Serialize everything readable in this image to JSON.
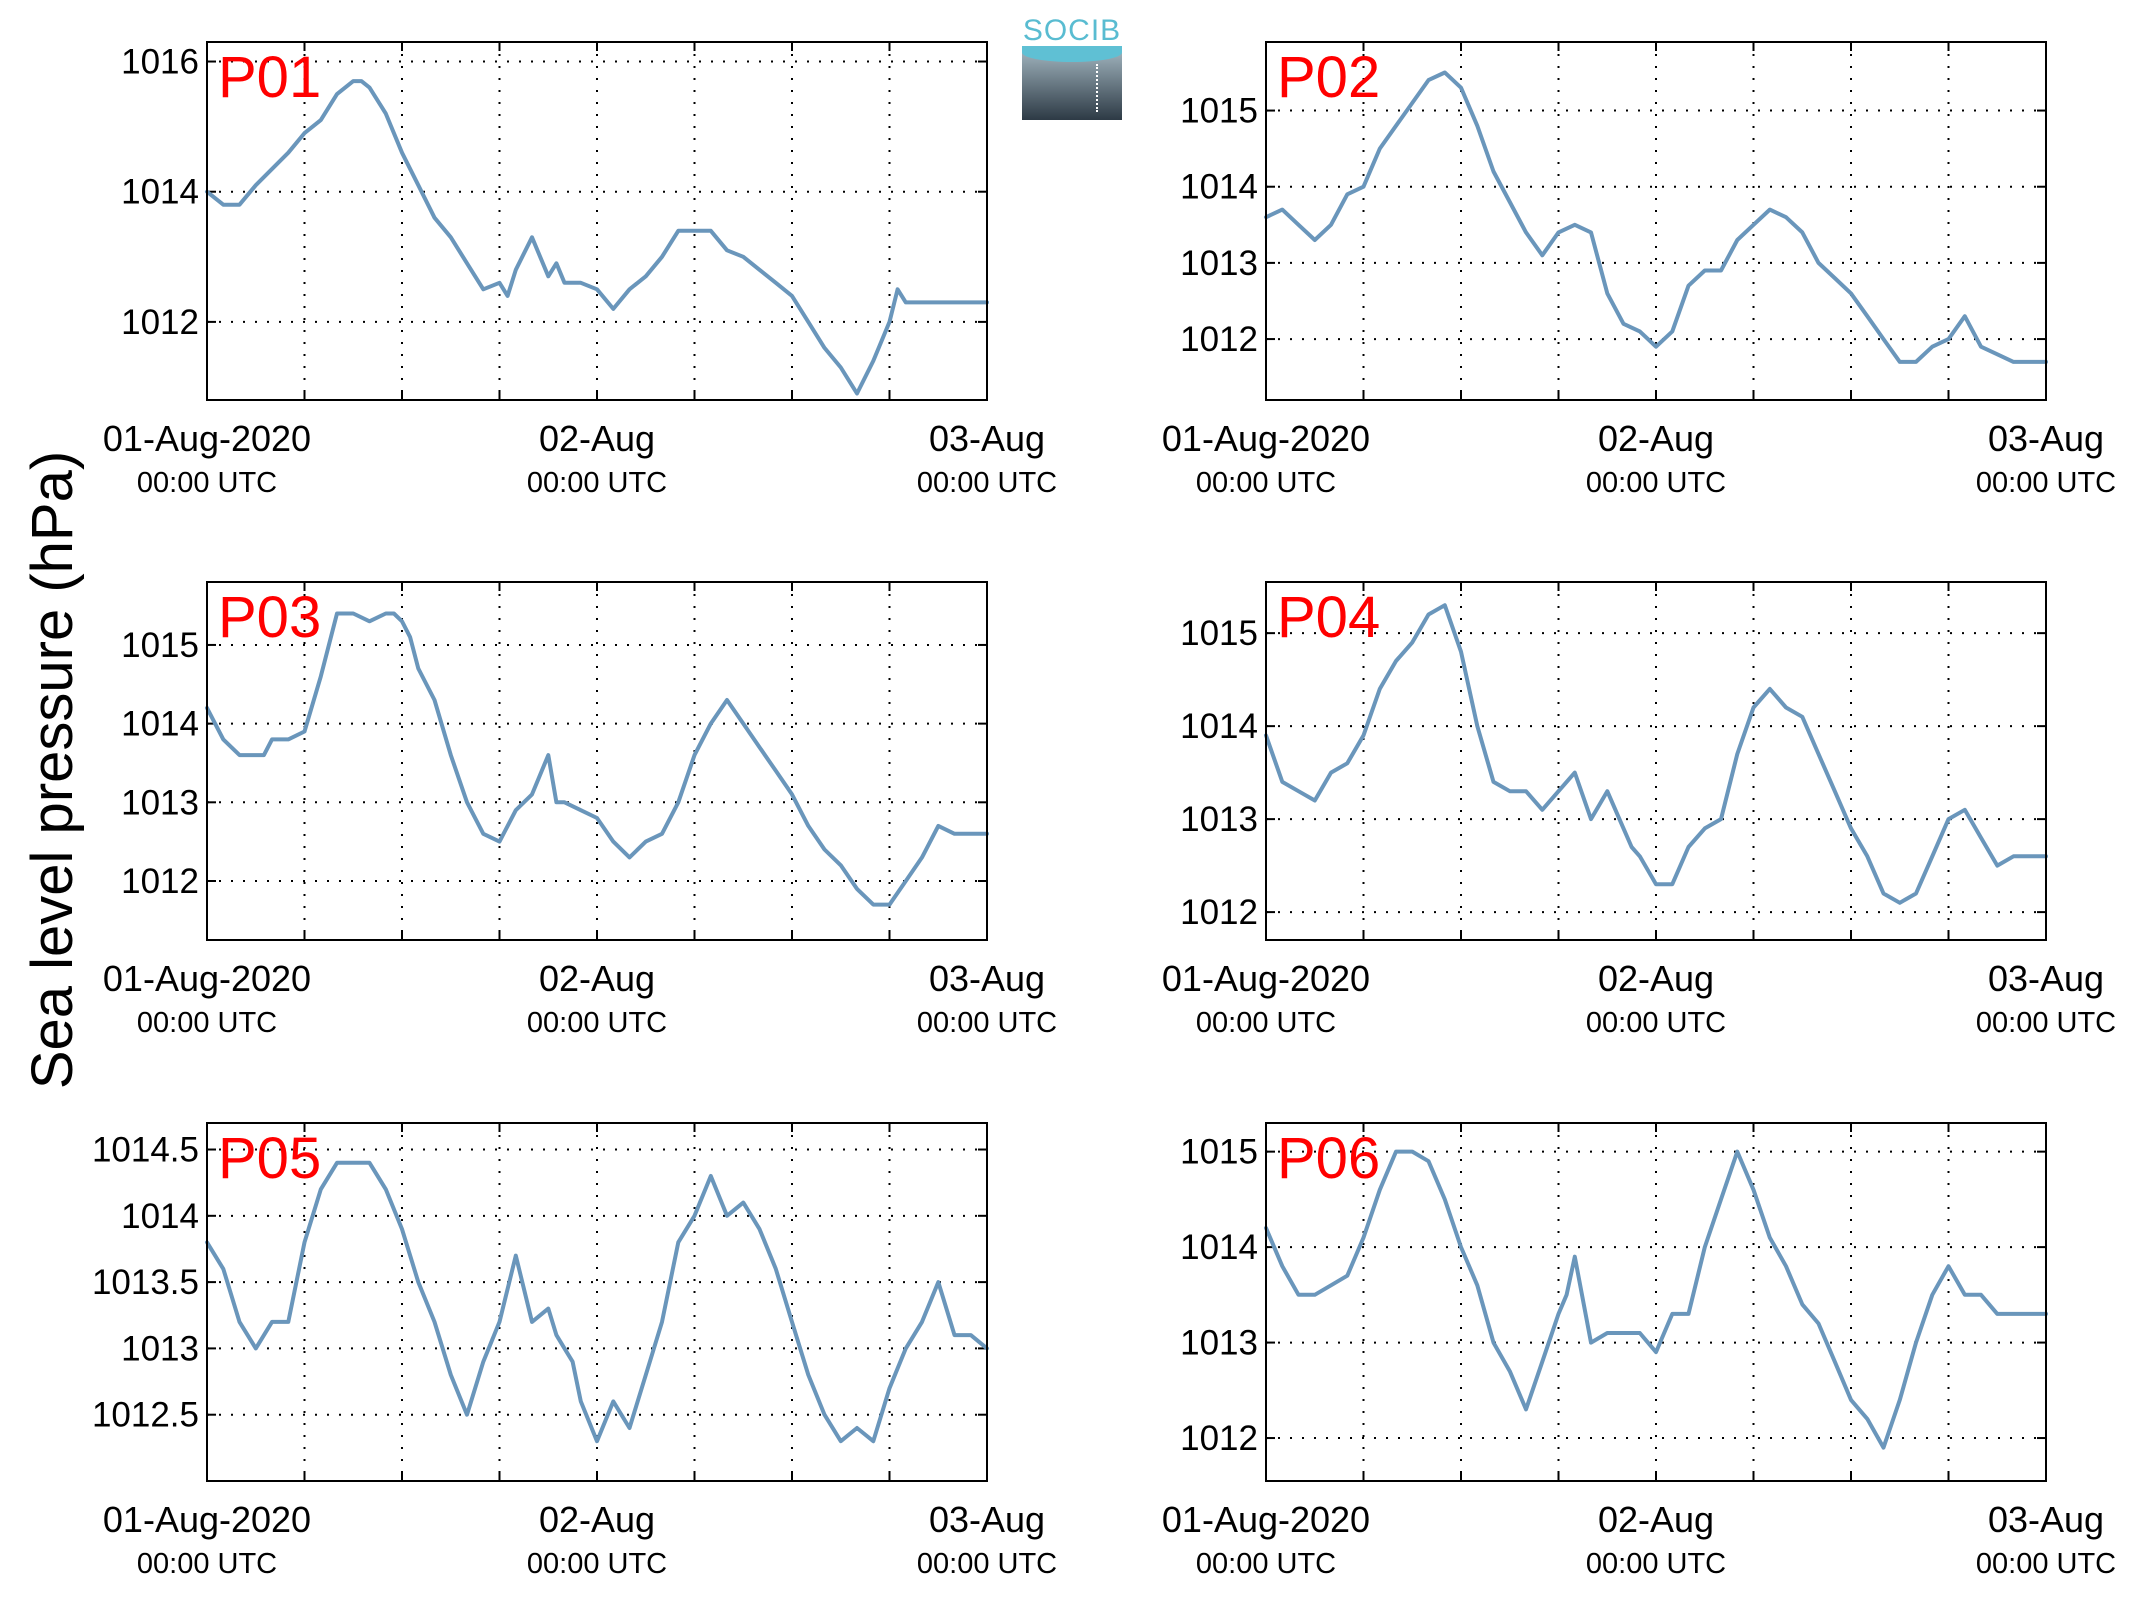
{
  "figure": {
    "ylabel": "Sea level pressure (hPa)",
    "logo_text": "SOCIB",
    "line_color": "#6a96bb",
    "label_color": "#ff0000",
    "x_ticks": [
      {
        "date": "01-Aug-2020",
        "time": "00:00 UTC"
      },
      {
        "date": "02-Aug",
        "time": "00:00 UTC"
      },
      {
        "date": "03-Aug",
        "time": "00:00 UTC"
      }
    ]
  },
  "chart_data": [
    {
      "type": "line",
      "panel_label": "P01",
      "x_range_hours": [
        0,
        48
      ],
      "ylim": [
        1010.8,
        1016.3
      ],
      "yticks": [
        1012,
        1014,
        1016
      ],
      "ytick_labels": [
        "1012",
        "1014",
        "1016"
      ],
      "grid": true,
      "series": [
        {
          "x_hours": [
            0,
            1,
            2,
            3,
            5,
            6,
            7,
            8,
            9,
            9.5,
            10,
            11,
            12,
            13,
            14,
            15,
            16,
            17,
            18,
            18.5,
            19,
            20,
            21,
            21.5,
            22,
            23,
            24,
            25,
            26,
            27,
            28,
            29,
            30,
            31,
            32,
            33,
            34,
            35,
            36,
            37,
            38,
            39,
            40,
            41,
            42,
            42.5,
            43,
            44,
            45,
            46,
            47,
            48
          ],
          "values": [
            1014.0,
            1013.8,
            1013.8,
            1014.1,
            1014.6,
            1014.9,
            1015.1,
            1015.5,
            1015.7,
            1015.7,
            1015.6,
            1015.2,
            1014.6,
            1014.1,
            1013.6,
            1013.3,
            1012.9,
            1012.5,
            1012.6,
            1012.4,
            1012.8,
            1013.3,
            1012.7,
            1012.9,
            1012.6,
            1012.6,
            1012.5,
            1012.2,
            1012.5,
            1012.7,
            1013.0,
            1013.4,
            1013.4,
            1013.4,
            1013.1,
            1013.0,
            1012.8,
            1012.6,
            1012.4,
            1012.0,
            1011.6,
            1011.3,
            1010.9,
            1011.4,
            1012.0,
            1012.5,
            1012.3,
            1012.3,
            1012.3,
            1012.3,
            1012.3,
            1012.3
          ]
        }
      ]
    },
    {
      "type": "line",
      "panel_label": "P02",
      "x_range_hours": [
        0,
        48
      ],
      "ylim": [
        1011.2,
        1015.9
      ],
      "yticks": [
        1012,
        1013,
        1014,
        1015
      ],
      "ytick_labels": [
        "1012",
        "1013",
        "1014",
        "1015"
      ],
      "grid": true,
      "series": [
        {
          "x_hours": [
            0,
            1,
            2,
            3,
            4,
            5,
            6,
            7,
            8,
            9,
            10,
            11,
            11.5,
            12,
            13,
            14,
            15,
            16,
            17,
            18,
            19,
            20,
            21,
            22,
            23,
            24,
            25,
            26,
            27,
            28,
            29,
            30,
            31,
            32,
            33,
            34,
            35,
            36,
            37,
            38,
            39,
            40,
            41,
            42,
            43,
            44,
            45,
            46,
            47,
            48
          ],
          "values": [
            1013.6,
            1013.7,
            1013.5,
            1013.3,
            1013.5,
            1013.9,
            1014.0,
            1014.5,
            1014.8,
            1015.1,
            1015.4,
            1015.5,
            1015.4,
            1015.3,
            1014.8,
            1014.2,
            1013.8,
            1013.4,
            1013.1,
            1013.4,
            1013.5,
            1013.4,
            1012.6,
            1012.2,
            1012.1,
            1011.9,
            1012.1,
            1012.7,
            1012.9,
            1012.9,
            1013.3,
            1013.5,
            1013.7,
            1013.6,
            1013.4,
            1013.0,
            1012.8,
            1012.6,
            1012.3,
            1012.0,
            1011.7,
            1011.7,
            1011.9,
            1012.0,
            1012.3,
            1011.9,
            1011.8,
            1011.7,
            1011.7,
            1011.7
          ]
        }
      ]
    },
    {
      "type": "line",
      "panel_label": "P03",
      "x_range_hours": [
        0,
        48
      ],
      "ylim": [
        1011.25,
        1015.8
      ],
      "yticks": [
        1012,
        1013,
        1014,
        1015
      ],
      "ytick_labels": [
        "1012",
        "1013",
        "1014",
        "1015"
      ],
      "grid": true,
      "series": [
        {
          "x_hours": [
            0,
            1,
            2,
            3,
            3.5,
            4,
            5,
            6,
            7,
            8,
            9,
            10,
            11,
            11.5,
            12,
            12.5,
            13,
            14,
            15,
            16,
            17,
            18,
            19,
            20,
            21,
            21.5,
            22,
            23,
            24,
            25,
            26,
            27,
            28,
            29,
            30,
            31,
            32,
            33,
            34,
            35,
            36,
            37,
            38,
            39,
            40,
            41,
            42,
            43,
            44,
            45,
            46,
            47,
            48
          ],
          "values": [
            1014.2,
            1013.8,
            1013.6,
            1013.6,
            1013.6,
            1013.8,
            1013.8,
            1013.9,
            1014.6,
            1015.4,
            1015.4,
            1015.3,
            1015.4,
            1015.4,
            1015.3,
            1015.1,
            1014.7,
            1014.3,
            1013.6,
            1013.0,
            1012.6,
            1012.5,
            1012.9,
            1013.1,
            1013.6,
            1013.0,
            1013.0,
            1012.9,
            1012.8,
            1012.5,
            1012.3,
            1012.5,
            1012.6,
            1013.0,
            1013.6,
            1014.0,
            1014.3,
            1014.0,
            1013.7,
            1013.4,
            1013.1,
            1012.7,
            1012.4,
            1012.2,
            1011.9,
            1011.7,
            1011.7,
            1012.0,
            1012.3,
            1012.7,
            1012.6,
            1012.6,
            1012.6
          ]
        }
      ]
    },
    {
      "type": "line",
      "panel_label": "P04",
      "x_range_hours": [
        0,
        48
      ],
      "ylim": [
        1011.7,
        1015.55
      ],
      "yticks": [
        1012,
        1013,
        1014,
        1015
      ],
      "ytick_labels": [
        "1012",
        "1013",
        "1014",
        "1015"
      ],
      "grid": true,
      "series": [
        {
          "x_hours": [
            0,
            1,
            2,
            3,
            4,
            5,
            6,
            7,
            8,
            9,
            10,
            11,
            12,
            13,
            14,
            15,
            16,
            17,
            18,
            19,
            20,
            21,
            22,
            22.5,
            23,
            24,
            25,
            26,
            27,
            28,
            29,
            30,
            31,
            32,
            33,
            34,
            35,
            36,
            37,
            38,
            39,
            40,
            41,
            42,
            43,
            44,
            45,
            46,
            47,
            48
          ],
          "values": [
            1013.9,
            1013.4,
            1013.3,
            1013.2,
            1013.5,
            1013.6,
            1013.9,
            1014.4,
            1014.7,
            1014.9,
            1015.2,
            1015.3,
            1014.8,
            1014.0,
            1013.4,
            1013.3,
            1013.3,
            1013.1,
            1013.3,
            1013.5,
            1013.0,
            1013.3,
            1012.9,
            1012.7,
            1012.6,
            1012.3,
            1012.3,
            1012.7,
            1012.9,
            1013.0,
            1013.7,
            1014.2,
            1014.4,
            1014.2,
            1014.1,
            1013.7,
            1013.3,
            1012.9,
            1012.6,
            1012.2,
            1012.1,
            1012.2,
            1012.6,
            1013.0,
            1013.1,
            1012.8,
            1012.5,
            1012.6,
            1012.6,
            1012.6
          ]
        }
      ]
    },
    {
      "type": "line",
      "panel_label": "P05",
      "x_range_hours": [
        0,
        48
      ],
      "ylim": [
        1012.0,
        1014.7
      ],
      "yticks": [
        1012.5,
        1013,
        1013.5,
        1014,
        1014.5
      ],
      "ytick_labels": [
        "1012.5",
        "1013",
        "1013.5",
        "1014",
        "1014.5"
      ],
      "grid": true,
      "series": [
        {
          "x_hours": [
            0,
            1,
            2,
            3,
            4,
            5,
            6,
            7,
            8,
            9,
            10,
            11,
            12,
            13,
            14,
            15,
            16,
            17,
            18,
            19,
            20,
            21,
            21.5,
            22,
            22.5,
            23,
            24,
            25,
            26,
            27,
            28,
            29,
            30,
            31,
            32,
            33,
            34,
            35,
            36,
            37,
            38,
            39,
            40,
            41,
            42,
            43,
            44,
            45,
            46,
            47,
            48
          ],
          "values": [
            1013.8,
            1013.6,
            1013.2,
            1013.0,
            1013.2,
            1013.2,
            1013.8,
            1014.2,
            1014.4,
            1014.4,
            1014.4,
            1014.2,
            1013.9,
            1013.5,
            1013.2,
            1012.8,
            1012.5,
            1012.9,
            1013.2,
            1013.7,
            1013.2,
            1013.3,
            1013.1,
            1013.0,
            1012.9,
            1012.6,
            1012.3,
            1012.6,
            1012.4,
            1012.8,
            1013.2,
            1013.8,
            1014.0,
            1014.3,
            1014.0,
            1014.1,
            1013.9,
            1013.6,
            1013.2,
            1012.8,
            1012.5,
            1012.3,
            1012.4,
            1012.3,
            1012.7,
            1013.0,
            1013.2,
            1013.5,
            1013.1,
            1013.1,
            1013.0
          ]
        }
      ]
    },
    {
      "type": "line",
      "panel_label": "P06",
      "x_range_hours": [
        0,
        48
      ],
      "ylim": [
        1011.55,
        1015.3
      ],
      "yticks": [
        1012,
        1013,
        1014,
        1015
      ],
      "ytick_labels": [
        "1012",
        "1013",
        "1014",
        "1015"
      ],
      "grid": true,
      "series": [
        {
          "x_hours": [
            0,
            1,
            2,
            3,
            4,
            5,
            6,
            7,
            8,
            9,
            10,
            11,
            12,
            13,
            14,
            15,
            16,
            17,
            18,
            18.5,
            19,
            20,
            21,
            22,
            23,
            24,
            25,
            26,
            27,
            28,
            29,
            30,
            31,
            32,
            33,
            34,
            35,
            36,
            37,
            38,
            39,
            40,
            41,
            42,
            43,
            44,
            45,
            46,
            47,
            48
          ],
          "values": [
            1014.2,
            1013.8,
            1013.5,
            1013.5,
            1013.6,
            1013.7,
            1014.1,
            1014.6,
            1015.0,
            1015.0,
            1014.9,
            1014.5,
            1014.0,
            1013.6,
            1013.0,
            1012.7,
            1012.3,
            1012.8,
            1013.3,
            1013.5,
            1013.9,
            1013.0,
            1013.1,
            1013.1,
            1013.1,
            1012.9,
            1013.3,
            1013.3,
            1014.0,
            1014.5,
            1015.0,
            1014.6,
            1014.1,
            1013.8,
            1013.4,
            1013.2,
            1012.8,
            1012.4,
            1012.2,
            1011.9,
            1012.4,
            1013.0,
            1013.5,
            1013.8,
            1013.5,
            1013.5,
            1013.3,
            1013.3,
            1013.3,
            1013.3
          ]
        }
      ]
    }
  ]
}
